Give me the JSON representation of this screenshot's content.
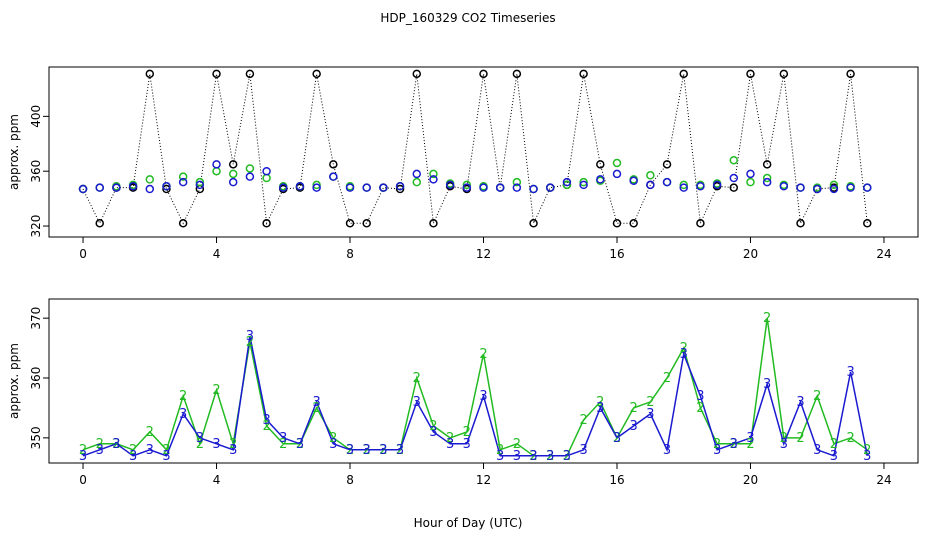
{
  "chart_data": [
    {
      "type": "scatter",
      "title": "HDP_160329  CO2 Timeseries",
      "ylabel": "approx. ppm",
      "x": [
        0,
        0.5,
        1,
        1.5,
        2,
        2.5,
        3,
        3.5,
        4,
        4.5,
        5,
        5.5,
        6,
        6.5,
        7,
        7.5,
        8,
        8.5,
        9,
        9.5,
        10,
        10.5,
        11,
        11.5,
        12,
        12.5,
        13,
        13.5,
        14,
        14.5,
        15,
        15.5,
        16,
        16.5,
        17,
        17.5,
        18,
        18.5,
        19,
        19.5,
        20,
        20.5,
        21,
        21.5,
        22,
        22.5,
        23,
        23.5
      ],
      "series": [
        {
          "color": "#000000",
          "linestyle": "dotted",
          "values": [
            347,
            322,
            348,
            348,
            431,
            347,
            322,
            347,
            431,
            365,
            431,
            322,
            347,
            348,
            431,
            365,
            322,
            322,
            348,
            347,
            431,
            322,
            349,
            347,
            431,
            348,
            431,
            322,
            348,
            350,
            431,
            365,
            322,
            322,
            350,
            365,
            431,
            322,
            349,
            348,
            431,
            365,
            431,
            322,
            347,
            348,
            431,
            322
          ]
        },
        {
          "color": "#22bb22",
          "values": [
            347,
            348,
            349,
            350,
            354,
            349,
            356,
            352,
            360,
            358,
            362,
            355,
            349,
            349,
            350,
            356,
            349,
            348,
            348,
            349,
            352,
            358,
            351,
            350,
            349,
            348,
            352,
            347,
            348,
            350,
            352,
            353,
            366,
            354,
            357,
            352,
            350,
            350,
            351,
            368,
            352,
            355,
            350,
            348,
            348,
            350,
            349,
            348
          ]
        },
        {
          "color": "#1a1ad0",
          "values": [
            347,
            348,
            348,
            349,
            347,
            349,
            352,
            350,
            365,
            352,
            356,
            360,
            348,
            349,
            348,
            356,
            348,
            348,
            348,
            349,
            358,
            354,
            350,
            348,
            348,
            348,
            348,
            347,
            348,
            352,
            350,
            354,
            358,
            353,
            350,
            352,
            348,
            349,
            350,
            355,
            358,
            352,
            349,
            348,
            347,
            347,
            348,
            348
          ]
        }
      ],
      "xlim": [
        -1.02,
        25.02
      ],
      "xticks": [
        0,
        4,
        8,
        12,
        16,
        20,
        24
      ],
      "ylim": [
        312,
        436
      ],
      "yticks": [
        320,
        360,
        400
      ]
    },
    {
      "type": "line",
      "ylabel": "approx. ppm",
      "xlabel": "Hour of Day (UTC)",
      "x": [
        0,
        0.5,
        1,
        1.5,
        2,
        2.5,
        3,
        3.5,
        4,
        4.5,
        5,
        5.5,
        6,
        6.5,
        7,
        7.5,
        8,
        8.5,
        9,
        9.5,
        10,
        10.5,
        11,
        11.5,
        12,
        12.5,
        13,
        13.5,
        14,
        14.5,
        15,
        15.5,
        16,
        16.5,
        17,
        17.5,
        18,
        18.5,
        19,
        19.5,
        20,
        20.5,
        21,
        21.5,
        22,
        22.5,
        23,
        23.5
      ],
      "series": [
        {
          "name": "2",
          "color": "#22bb22",
          "values": [
            348,
            349,
            349,
            348,
            351,
            348,
            357,
            349,
            358,
            349,
            366,
            352,
            349,
            349,
            355,
            350,
            348,
            348,
            348,
            348,
            360,
            352,
            350,
            351,
            364,
            348,
            349,
            347,
            347,
            347,
            353,
            356,
            350,
            355,
            356,
            360,
            365,
            355,
            349,
            349,
            349,
            370,
            350,
            350,
            357,
            349,
            350,
            348
          ]
        },
        {
          "name": "3",
          "color": "#1a1ad0",
          "values": [
            347,
            348,
            349,
            347,
            348,
            347,
            354,
            350,
            349,
            348,
            367,
            353,
            350,
            349,
            356,
            349,
            348,
            348,
            348,
            348,
            356,
            351,
            349,
            349,
            357,
            347,
            347,
            347,
            347,
            347,
            348,
            355,
            350,
            352,
            354,
            348,
            364,
            357,
            348,
            349,
            350,
            359,
            349,
            356,
            348,
            347,
            361,
            347
          ]
        }
      ],
      "xlim": [
        -1.02,
        25.02
      ],
      "xticks": [
        0,
        4,
        8,
        12,
        16,
        20,
        24
      ],
      "ylim": [
        345.8,
        373.2
      ],
      "yticks": [
        350,
        360,
        370
      ]
    }
  ]
}
